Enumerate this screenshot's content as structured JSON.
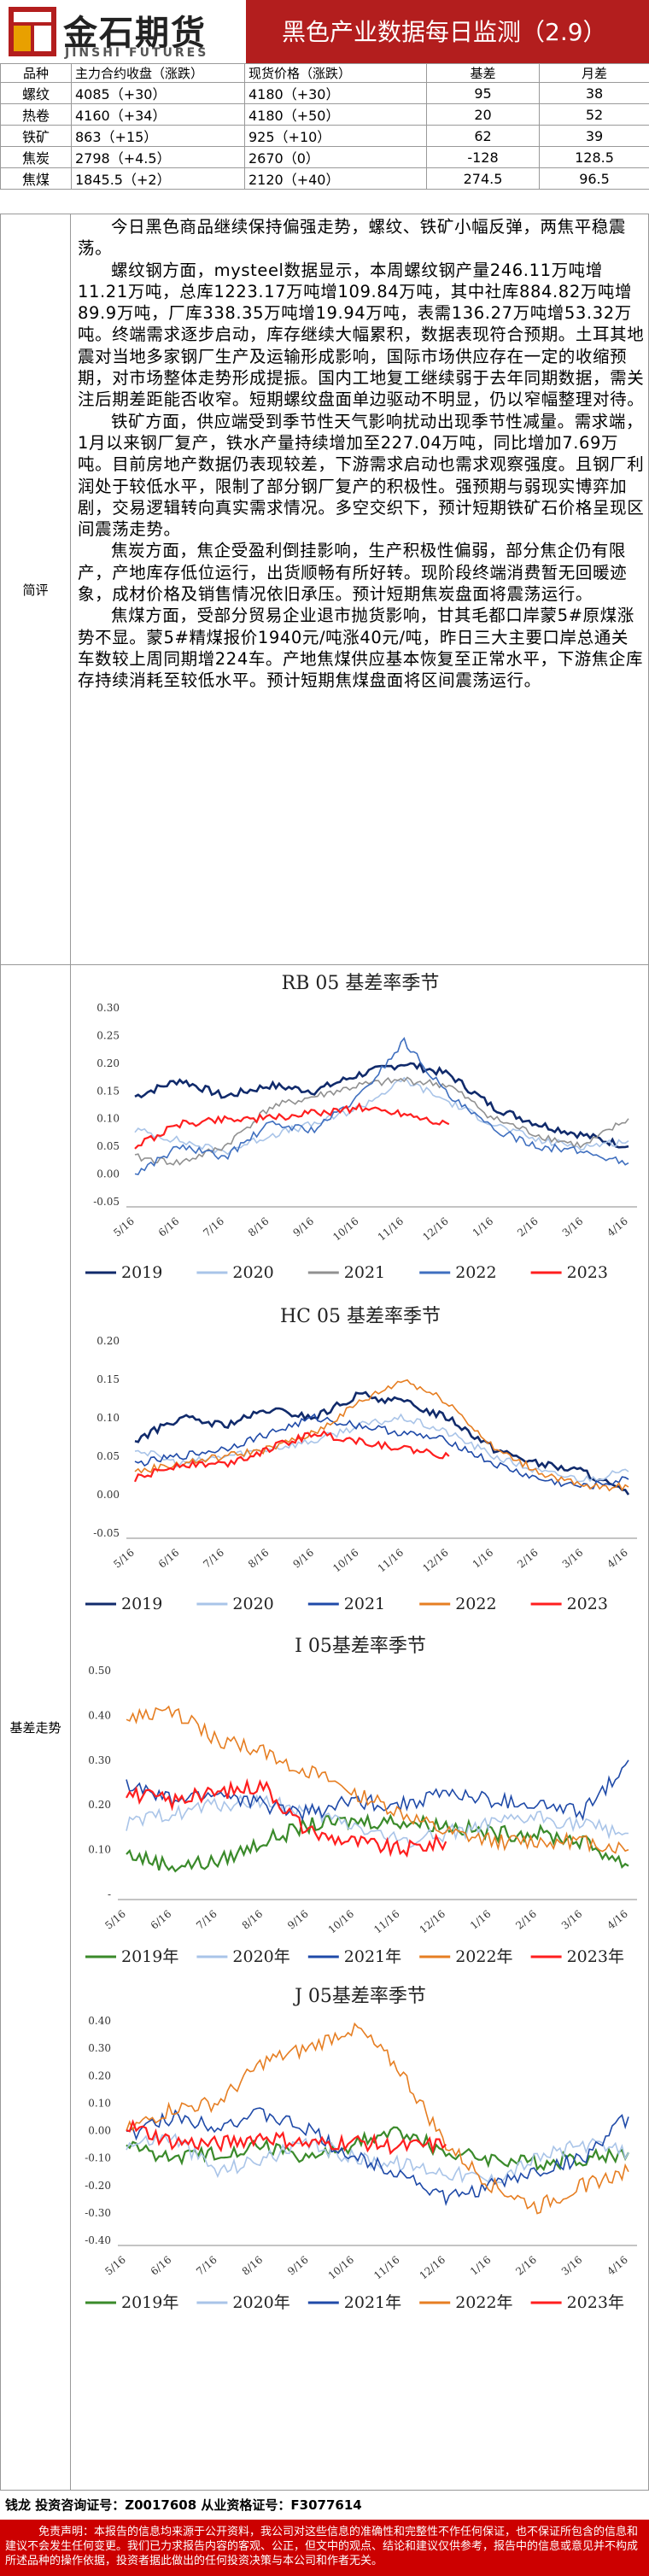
{
  "header": {
    "logo_cn": "金石期货",
    "logo_en": "JINSHI FUTURES",
    "title": "黑色产业数据每日监测（2.9）"
  },
  "market": {
    "columns": [
      "品种",
      "主力合约收盘（涨跌）",
      "现货价格（涨跌）",
      "基差",
      "月差"
    ],
    "rows": [
      [
        "螺纹",
        "4085（+30）",
        "4180（+30）",
        "95",
        "38"
      ],
      [
        "热卷",
        "4160（+34）",
        "4180（+50）",
        "20",
        "52"
      ],
      [
        "铁矿",
        "863（+15）",
        "925（+10）",
        "62",
        "39"
      ],
      [
        "焦炭",
        "2798（+4.5）",
        "2670（0）",
        "-128",
        "128.5"
      ],
      [
        "焦煤",
        "1845.5（+2）",
        "2120（+40）",
        "274.5",
        "96.5"
      ]
    ]
  },
  "commentary": {
    "label": "简评",
    "paragraphs": [
      "今日黑色商品继续保持偏强走势，螺纹、铁矿小幅反弹，两焦平稳震荡。",
      "螺纹钢方面，mysteel数据显示，本周螺纹钢产量246.11万吨增11.21万吨，总库1223.17万吨增109.84万吨，其中社库884.82万吨增89.9万吨，厂库338.35万吨增19.94万吨，表需136.27万吨增53.32万吨。终端需求逐步启动，库存继续大幅累积，数据表现符合预期。土耳其地震对当地多家钢厂生产及运输形成影响，国际市场供应存在一定的收缩预期，对市场整体走势形成提振。国内工地复工继续弱于去年同期数据，需关注后期差距能否收窄。短期螺纹盘面单边驱动不明显，仍以窄幅整理对待。",
      "铁矿方面，供应端受到季节性天气影响扰动出现季节性减量。需求端，1月以来钢厂复产，铁水产量持续增加至227.04万吨，同比增加7.69万吨。目前房地产数据仍表现较差，下游需求启动也需求观察强度。且钢厂利润处于较低水平，限制了部分钢厂复产的积极性。强预期与弱现实博弈加剧，交易逻辑转向真实需求情况。多空交织下，预计短期铁矿石价格呈现区间震荡走势。",
      "焦炭方面，焦企受盈利倒挂影响，生产积极性偏弱，部分焦企仍有限产，产地库存低位运行，出货顺畅有所好转。现阶段终端消费暂无回暖迹象，成材价格及销售情况依旧承压。预计短期焦炭盘面将震荡运行。",
      "焦煤方面，受部分贸易企业退市抛货影响，甘其毛都口岸蒙5#原煤涨势不显。蒙5#精煤报价1940元/吨涨40元/吨，昨日三大主要口岸总通关车数较上周同期增224车。产地焦煤供应基本恢复至正常水平，下游焦企库存持续消耗至较低水平。预计短期焦煤盘面将区间震荡运行。"
    ]
  },
  "basis": {
    "label": "基差走势"
  },
  "chart_data": [
    {
      "type": "line",
      "title": "RB 05 基差率季节",
      "ylim": [
        -0.05,
        0.3
      ],
      "yticks": [
        "0.30",
        "0.25",
        "0.20",
        "0.15",
        "0.10",
        "0.05",
        "0.00",
        "-0.05"
      ],
      "categories": [
        "5/16",
        "6/16",
        "7/16",
        "8/16",
        "9/16",
        "10/16",
        "11/16",
        "12/16",
        "1/16",
        "2/16",
        "3/16",
        "4/16"
      ],
      "series": [
        {
          "name": "2019",
          "color": "#102a6b",
          "width": 2.6,
          "values": [
            0.14,
            0.17,
            0.14,
            0.16,
            0.15,
            0.18,
            0.2,
            0.18,
            0.12,
            0.09,
            0.07,
            0.05
          ]
        },
        {
          "name": "2020",
          "color": "#a9c4e8",
          "width": 1.6,
          "values": [
            0.08,
            0.06,
            0.04,
            0.07,
            0.09,
            0.12,
            0.17,
            0.13,
            0.09,
            0.06,
            0.05,
            0.06
          ]
        },
        {
          "name": "2021",
          "color": "#909090",
          "width": 1.6,
          "values": [
            0.03,
            0.02,
            0.05,
            0.12,
            0.14,
            0.16,
            0.17,
            0.16,
            0.1,
            0.07,
            0.05,
            0.1
          ]
        },
        {
          "name": "2022",
          "color": "#3f6fbf",
          "width": 1.6,
          "values": [
            0.0,
            0.05,
            0.03,
            0.09,
            0.08,
            0.14,
            0.24,
            0.14,
            0.08,
            0.05,
            0.04,
            0.02
          ]
        },
        {
          "name": "2023",
          "color": "#ff1e1e",
          "width": 2.2,
          "values": [
            0.05,
            0.09,
            0.1,
            0.1,
            0.11,
            0.12,
            0.11,
            0.09,
            null,
            null,
            null,
            null
          ]
        }
      ]
    },
    {
      "type": "line",
      "title": "HC 05 基差率季节",
      "ylim": [
        -0.05,
        0.2
      ],
      "yticks": [
        "0.20",
        "0.15",
        "0.10",
        "0.05",
        "0.00",
        "-0.05"
      ],
      "categories": [
        "5/16",
        "6/16",
        "7/16",
        "8/16",
        "9/16",
        "10/16",
        "11/16",
        "12/16",
        "1/16",
        "2/16",
        "3/16",
        "4/16"
      ],
      "series": [
        {
          "name": "2019",
          "color": "#102a6b",
          "width": 2.6,
          "values": [
            0.07,
            0.1,
            0.09,
            0.11,
            0.1,
            0.13,
            0.12,
            0.1,
            0.06,
            0.04,
            0.03,
            0.0
          ]
        },
        {
          "name": "2020",
          "color": "#a9c4e8",
          "width": 1.6,
          "values": [
            0.06,
            0.04,
            0.05,
            0.06,
            0.07,
            0.09,
            0.1,
            0.08,
            0.05,
            0.03,
            0.02,
            0.03
          ]
        },
        {
          "name": "2021",
          "color": "#1f4aa8",
          "width": 1.6,
          "values": [
            0.04,
            0.05,
            0.06,
            0.08,
            0.1,
            0.09,
            0.08,
            0.07,
            0.04,
            0.02,
            0.01,
            0.02
          ]
        },
        {
          "name": "2022",
          "color": "#e67e22",
          "width": 1.6,
          "values": [
            0.03,
            0.04,
            0.05,
            0.06,
            0.08,
            0.12,
            0.15,
            0.12,
            0.06,
            0.03,
            0.01,
            0.01
          ]
        },
        {
          "name": "2023",
          "color": "#ff1e1e",
          "width": 2.2,
          "values": [
            0.02,
            0.04,
            0.04,
            0.06,
            0.08,
            0.07,
            0.06,
            0.05,
            null,
            null,
            null,
            null
          ]
        }
      ]
    },
    {
      "type": "line",
      "title": "I 05基差率季节",
      "ylim": [
        -0.05,
        0.5
      ],
      "yticks": [
        "0.50",
        "0.40",
        "0.30",
        "0.20",
        "0.10",
        "-"
      ],
      "categories": [
        "5/16",
        "6/16",
        "7/16",
        "8/16",
        "9/16",
        "10/16",
        "11/16",
        "12/16",
        "1/16",
        "2/16",
        "3/16",
        "4/16"
      ],
      "series": [
        {
          "name": "2019年",
          "color": "#3a8a2a",
          "width": 2.2,
          "values": [
            0.05,
            0.02,
            0.03,
            0.08,
            0.12,
            0.13,
            0.13,
            0.12,
            0.1,
            0.1,
            0.08,
            0.02
          ]
        },
        {
          "name": "2020年",
          "color": "#a9c4e8",
          "width": 1.6,
          "values": [
            0.12,
            0.15,
            0.17,
            0.18,
            0.15,
            0.12,
            0.08,
            0.1,
            0.12,
            0.14,
            0.12,
            0.1
          ]
        },
        {
          "name": "2021年",
          "color": "#1f4aa8",
          "width": 1.6,
          "values": [
            0.22,
            0.18,
            0.2,
            0.17,
            0.15,
            0.18,
            0.17,
            0.2,
            0.18,
            0.17,
            0.15,
            0.28
          ]
        },
        {
          "name": "2022年",
          "color": "#e67e22",
          "width": 1.6,
          "values": [
            0.38,
            0.4,
            0.33,
            0.3,
            0.25,
            0.2,
            0.15,
            0.1,
            0.08,
            0.08,
            0.08,
            0.06
          ]
        },
        {
          "name": "2023年",
          "color": "#ff1e1e",
          "width": 2.2,
          "values": [
            0.2,
            0.18,
            0.2,
            0.22,
            0.1,
            0.08,
            0.06,
            0.08,
            null,
            null,
            null,
            null
          ]
        }
      ]
    },
    {
      "type": "line",
      "title": "J 05基差率季节",
      "ylim": [
        -0.4,
        0.4
      ],
      "yticks": [
        "0.40",
        "0.30",
        "0.20",
        "0.10",
        "0.00",
        "-0.10",
        "-0.20",
        "-0.30",
        "-0.40"
      ],
      "categories": [
        "5/16",
        "6/16",
        "7/16",
        "8/16",
        "9/16",
        "10/16",
        "11/16",
        "12/16",
        "1/16",
        "2/16",
        "3/16",
        "4/16"
      ],
      "series": [
        {
          "name": "2019年",
          "color": "#3a8a2a",
          "width": 2.2,
          "values": [
            -0.05,
            -0.1,
            -0.08,
            -0.05,
            -0.1,
            -0.05,
            0.0,
            -0.08,
            -0.1,
            -0.12,
            -0.1,
            -0.08
          ]
        },
        {
          "name": "2020年",
          "color": "#a9c4e8",
          "width": 1.6,
          "values": [
            -0.05,
            -0.02,
            -0.15,
            -0.1,
            -0.05,
            -0.1,
            -0.12,
            -0.15,
            -0.18,
            -0.1,
            -0.05,
            -0.08
          ]
        },
        {
          "name": "2021年",
          "color": "#1f4aa8",
          "width": 1.6,
          "values": [
            -0.02,
            0.05,
            0.02,
            0.06,
            0.0,
            -0.1,
            -0.15,
            -0.25,
            -0.2,
            -0.15,
            -0.1,
            0.05
          ]
        },
        {
          "name": "2022年",
          "color": "#e67e22",
          "width": 1.6,
          "values": [
            0.0,
            0.08,
            0.1,
            0.25,
            0.3,
            0.38,
            0.22,
            -0.05,
            -0.2,
            -0.28,
            -0.2,
            -0.15
          ]
        },
        {
          "name": "2023年",
          "color": "#ff1e1e",
          "width": 2.2,
          "values": [
            0.02,
            -0.04,
            -0.05,
            -0.02,
            -0.05,
            -0.04,
            -0.06,
            -0.05,
            null,
            null,
            null,
            null
          ]
        }
      ]
    }
  ],
  "footer": {
    "signature": "钱龙 投资咨询证号：Z0017608 从业资格证号：F3077614",
    "disclaimer": "免责声明：本报告的信息均来源于公开资料，我公司对这些信息的准确性和完整性不作任何保证，也不保证所包含的信息和建议不会发生任何变更。我们已力求报告内容的客观、公正，但文中的观点、结论和建议仅供参考，报告中的信息或意见并不构成所述品种的操作依据，投资者据此做出的任何投资决策与本公司和作者无关。"
  }
}
